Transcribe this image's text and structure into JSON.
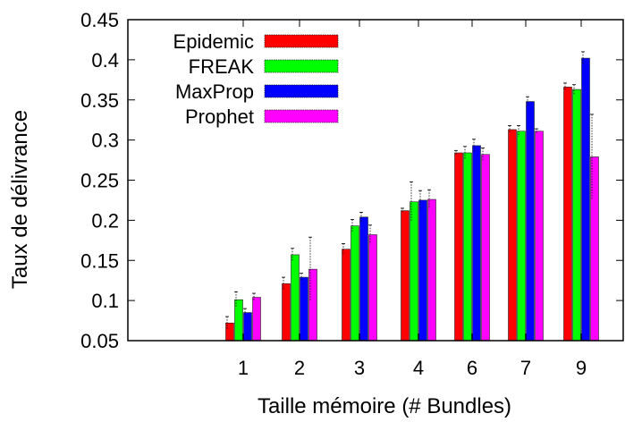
{
  "chart_data": {
    "type": "bar",
    "xlabel": "Taille mémoire (# Bundles)",
    "ylabel": "Taux de délivrance",
    "ylim": [
      0.05,
      0.45
    ],
    "yticks": [
      "0.05",
      "0.1",
      "0.15",
      "0.2",
      "0.25",
      "0.3",
      "0.35",
      "0.4",
      "0.45"
    ],
    "categories": [
      "1",
      "2",
      "3",
      "4",
      "6",
      "7",
      "9"
    ],
    "legend_position": "top-left",
    "error_bars": true,
    "series": [
      {
        "name": "Epidemic",
        "color": "#ff0000",
        "values": [
          0.072,
          0.121,
          0.164,
          0.212,
          0.284,
          0.313,
          0.366
        ],
        "errors": [
          0.008,
          0.008,
          0.007,
          0.003,
          0.003,
          0.005,
          0.005
        ]
      },
      {
        "name": "FREAK",
        "color": "#00ff00",
        "values": [
          0.101,
          0.157,
          0.193,
          0.223,
          0.284,
          0.311,
          0.363
        ],
        "errors": [
          0.01,
          0.008,
          0.008,
          0.025,
          0.008,
          0.007,
          0.006
        ]
      },
      {
        "name": "MaxProp",
        "color": "#0000ff",
        "values": [
          0.085,
          0.129,
          0.204,
          0.225,
          0.293,
          0.348,
          0.402
        ],
        "errors": [
          0.005,
          0.005,
          0.006,
          0.012,
          0.008,
          0.006,
          0.008
        ]
      },
      {
        "name": "Prophet",
        "color": "#ff00ff",
        "values": [
          0.104,
          0.139,
          0.182,
          0.226,
          0.282,
          0.311,
          0.279
        ],
        "errors": [
          0.005,
          0.04,
          0.012,
          0.012,
          0.008,
          0.003,
          0.053
        ]
      }
    ]
  }
}
